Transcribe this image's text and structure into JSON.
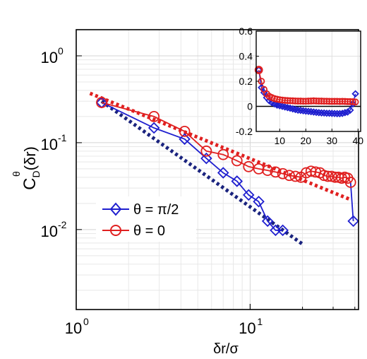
{
  "chart_data": [
    {
      "type": "line",
      "x_scale": "log",
      "y_scale": "log",
      "xlim": [
        1,
        42
      ],
      "ylim": [
        0.0012,
        2
      ],
      "grid": true,
      "legend_position": "lower-left",
      "xlabel": "δr/σ",
      "ylabel_main": "C",
      "ylabel_sup": "θ",
      "ylabel_sub": "D",
      "ylabel_tail": "(δr)",
      "x_ticks": [
        {
          "value": 1,
          "base": "10",
          "exp": "0"
        },
        {
          "value": 10,
          "base": "10",
          "exp": "1"
        }
      ],
      "y_ticks": [
        {
          "value": 0.01,
          "base": "10",
          "exp": "-2"
        },
        {
          "value": 0.1,
          "base": "10",
          "exp": "-1"
        },
        {
          "value": 1,
          "base": "10",
          "exp": "0"
        }
      ],
      "series": [
        {
          "name": "θ = π/2",
          "color": "#1f1fcf",
          "marker": "diamond",
          "x": [
            1.4,
            2.8,
            4.2,
            5.6,
            7.0,
            8.4,
            9.8,
            11.2,
            12.6,
            14.0,
            15.4
          ],
          "y": [
            0.29,
            0.148,
            0.11,
            0.066,
            0.045,
            0.036,
            0.025,
            0.021,
            0.0125,
            0.0098,
            0.0098
          ]
        },
        {
          "name": "θ = 0",
          "color": "#e02020",
          "marker": "circle",
          "x": [
            1.4,
            2.8,
            4.2,
            5.6,
            7.0,
            8.4,
            9.8,
            11.2,
            12.6,
            14.0,
            15.4,
            16.8,
            18.2,
            19.6,
            21.0,
            22.4,
            23.8,
            25.2,
            26.6,
            28.0,
            29.4,
            30.8,
            32.2,
            33.6,
            35.0,
            36.4,
            37.8
          ],
          "y": [
            0.29,
            0.2,
            0.135,
            0.08,
            0.073,
            0.062,
            0.053,
            0.05,
            0.048,
            0.046,
            0.044,
            0.042,
            0.041,
            0.04,
            0.045,
            0.047,
            0.046,
            0.045,
            0.042,
            0.041,
            0.041,
            0.04,
            0.04,
            0.039,
            0.04,
            0.039,
            0.035
          ]
        }
      ],
      "blue_tail": {
        "x": [
          37.8,
          39.2
        ],
        "y": [
          0.035,
          0.0125
        ]
      },
      "fits": [
        {
          "color": "#1a237e",
          "style": "dotted",
          "x": [
            1.4,
            20
          ],
          "y": [
            0.3,
            0.0068
          ]
        },
        {
          "color": "#e02020",
          "style": "dotted",
          "x": [
            1.2,
            38
          ],
          "y": [
            0.37,
            0.022
          ]
        }
      ]
    },
    {
      "type": "line",
      "inset": true,
      "xlim": [
        1,
        41
      ],
      "ylim": [
        -0.2,
        0.6
      ],
      "grid": true,
      "x_ticks": [
        10,
        20,
        30,
        40
      ],
      "y_ticks": [
        -0.2,
        0,
        0.2,
        0.4,
        0.6
      ],
      "x_tick_labels": [
        "10",
        "20",
        "30",
        "40"
      ],
      "y_tick_labels": [
        "-0.2",
        "0",
        "0.2",
        "0.4",
        "0.6"
      ],
      "zero_line": true,
      "series": [
        {
          "name": "θ = π/2",
          "color": "#1f1fcf",
          "marker": "diamond",
          "x": [
            2,
            3,
            4,
            5,
            6,
            7,
            8,
            9,
            10,
            11,
            12,
            13,
            14,
            15,
            16,
            17,
            18,
            19,
            20,
            21,
            22,
            23,
            24,
            25,
            26,
            27,
            28,
            29,
            30,
            31,
            32,
            33,
            34,
            35,
            36,
            37,
            38,
            39
          ],
          "y": [
            0.29,
            0.15,
            0.11,
            0.07,
            0.045,
            0.03,
            0.02,
            0.01,
            0.005,
            0.0,
            -0.005,
            -0.01,
            -0.015,
            -0.02,
            -0.025,
            -0.03,
            -0.032,
            -0.035,
            -0.038,
            -0.04,
            -0.042,
            -0.045,
            -0.048,
            -0.05,
            -0.052,
            -0.053,
            -0.055,
            -0.055,
            -0.056,
            -0.057,
            -0.058,
            -0.058,
            -0.056,
            -0.05,
            -0.045,
            -0.03,
            0.02,
            0.1
          ]
        },
        {
          "name": "θ = 0",
          "color": "#e02020",
          "marker": "circle",
          "x": [
            2,
            3,
            4,
            5,
            6,
            7,
            8,
            9,
            10,
            11,
            12,
            13,
            14,
            15,
            16,
            17,
            18,
            19,
            20,
            21,
            22,
            23,
            24,
            25,
            26,
            27,
            28,
            29,
            30,
            31,
            32,
            33,
            34,
            35,
            36,
            37,
            38,
            39
          ],
          "y": [
            0.29,
            0.2,
            0.135,
            0.1,
            0.08,
            0.07,
            0.062,
            0.057,
            0.053,
            0.05,
            0.048,
            0.046,
            0.045,
            0.044,
            0.043,
            0.042,
            0.042,
            0.041,
            0.041,
            0.042,
            0.043,
            0.044,
            0.043,
            0.042,
            0.042,
            0.041,
            0.041,
            0.04,
            0.04,
            0.04,
            0.04,
            0.039,
            0.04,
            0.039,
            0.038,
            0.038,
            0.037,
            0.035
          ]
        }
      ]
    }
  ]
}
